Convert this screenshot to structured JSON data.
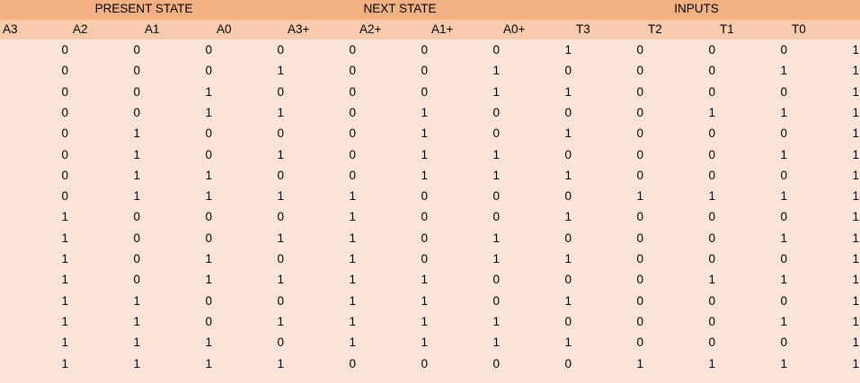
{
  "groups": [
    "PRESENT STATE",
    "NEXT STATE",
    "INPUTS"
  ],
  "columns": [
    "A3",
    "A2",
    "A1",
    "A0",
    "A3+",
    "A2+",
    "A1+",
    "A0+",
    "T3",
    "T2",
    "T1",
    "T0"
  ],
  "rows": [
    [
      "0",
      "0",
      "0",
      "0",
      "0",
      "0",
      "0",
      "1",
      "0",
      "0",
      "0",
      "1"
    ],
    [
      "0",
      "0",
      "0",
      "1",
      "0",
      "0",
      "1",
      "0",
      "0",
      "0",
      "1",
      "1"
    ],
    [
      "0",
      "0",
      "1",
      "0",
      "0",
      "0",
      "1",
      "1",
      "0",
      "0",
      "0",
      "1"
    ],
    [
      "0",
      "0",
      "1",
      "1",
      "0",
      "1",
      "0",
      "0",
      "0",
      "1",
      "1",
      "1"
    ],
    [
      "0",
      "1",
      "0",
      "0",
      "0",
      "1",
      "0",
      "1",
      "0",
      "0",
      "0",
      "1"
    ],
    [
      "0",
      "1",
      "0",
      "1",
      "0",
      "1",
      "1",
      "0",
      "0",
      "0",
      "1",
      "1"
    ],
    [
      "0",
      "1",
      "1",
      "0",
      "0",
      "1",
      "1",
      "1",
      "0",
      "0",
      "0",
      "1"
    ],
    [
      "0",
      "1",
      "1",
      "1",
      "1",
      "0",
      "0",
      "0",
      "1",
      "1",
      "1",
      "1"
    ],
    [
      "1",
      "0",
      "0",
      "0",
      "1",
      "0",
      "0",
      "1",
      "0",
      "0",
      "0",
      "1"
    ],
    [
      "1",
      "0",
      "0",
      "1",
      "1",
      "0",
      "1",
      "0",
      "0",
      "0",
      "1",
      "1"
    ],
    [
      "1",
      "0",
      "1",
      "0",
      "1",
      "0",
      "1",
      "1",
      "0",
      "0",
      "0",
      "1"
    ],
    [
      "1",
      "0",
      "1",
      "1",
      "1",
      "1",
      "0",
      "0",
      "0",
      "1",
      "1",
      "1"
    ],
    [
      "1",
      "1",
      "0",
      "0",
      "1",
      "1",
      "0",
      "1",
      "0",
      "0",
      "0",
      "1"
    ],
    [
      "1",
      "1",
      "0",
      "1",
      "1",
      "1",
      "1",
      "0",
      "0",
      "0",
      "1",
      "1"
    ],
    [
      "1",
      "1",
      "1",
      "0",
      "1",
      "1",
      "1",
      "1",
      "0",
      "0",
      "0",
      "1"
    ],
    [
      "1",
      "1",
      "1",
      "1",
      "0",
      "0",
      "0",
      "0",
      "1",
      "1",
      "1",
      "1"
    ]
  ],
  "colors": {
    "group_header_bg": "#f4b183",
    "column_header_bg": "#f8cbad",
    "body_bg": "#fde4d6"
  }
}
